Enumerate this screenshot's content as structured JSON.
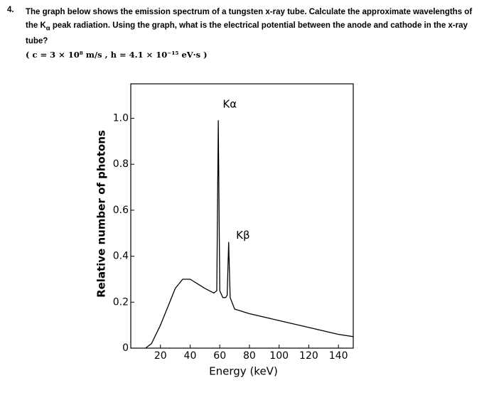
{
  "question": {
    "number": "4.",
    "text_before": "The graph below shows the emission spectrum of a tungsten x-ray tube. Calculate the approximate wavelengths of the K",
    "subscript": "α",
    "text_after": " peak radiation. Using the graph, what is the electrical potential between the anode and cathode in the x-ray tube?",
    "formula": "( c = 3 × 10⁸ m/s , h = 4.1 × 10⁻¹⁵ eV·s )"
  },
  "chart_data": {
    "type": "line",
    "x_label": "Energy (keV)",
    "y_label": "Relative number of photons",
    "x": [
      10,
      14,
      20,
      25,
      30,
      35,
      40,
      45,
      50,
      56,
      58,
      59,
      60,
      62,
      64,
      65,
      66,
      67,
      70,
      80,
      100,
      120,
      140,
      150
    ],
    "series": [
      {
        "color": "#000000",
        "values": [
          0,
          0.02,
          0.1,
          0.18,
          0.26,
          0.3,
          0.3,
          0.28,
          0.26,
          0.24,
          0.25,
          0.99,
          0.25,
          0.22,
          0.22,
          0.23,
          0.46,
          0.22,
          0.17,
          0.15,
          0.12,
          0.09,
          0.06,
          0.05
        ]
      }
    ],
    "xlim": [
      0,
      150
    ],
    "ylim": [
      0,
      1.15
    ],
    "xticks": [
      20,
      40,
      60,
      80,
      100,
      120,
      140
    ],
    "yticks": [
      0,
      0.2,
      0.4,
      0.6,
      0.8,
      {
        "value": 1,
        "label": "1.0"
      }
    ],
    "annotations": [
      {
        "text": "Kα",
        "x": 62,
        "y": 1.06
      },
      {
        "text": "Kβ",
        "x": 71,
        "y": 0.49
      }
    ]
  }
}
